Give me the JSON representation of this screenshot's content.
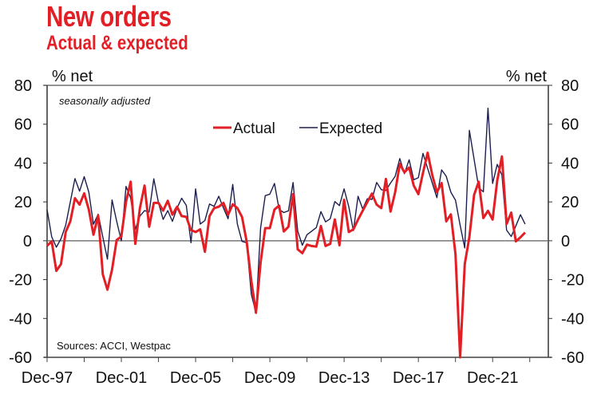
{
  "chart_data": {
    "type": "line",
    "title": "New orders",
    "subtitle": "Actual & expected",
    "ylabel_left": "% net",
    "ylabel_right": "% net",
    "note": "seasonally adjusted",
    "source": "Sources: ACCI, Westpac",
    "ylim": [
      -60,
      80
    ],
    "yticks": [
      80,
      60,
      40,
      20,
      0,
      -20,
      -40,
      -60
    ],
    "xlim": [
      "Dec-97",
      "Dec-24"
    ],
    "xtick_labels": [
      "Dec-97",
      "Dec-01",
      "Dec-05",
      "Dec-09",
      "Dec-13",
      "Dec-17",
      "Dec-21"
    ],
    "grid": false,
    "legend_position": "top-center",
    "frequency": "quarterly",
    "x": [
      "Dec-97",
      "Mar-98",
      "Jun-98",
      "Sep-98",
      "Dec-98",
      "Mar-99",
      "Jun-99",
      "Sep-99",
      "Dec-99",
      "Mar-00",
      "Jun-00",
      "Sep-00",
      "Dec-00",
      "Mar-01",
      "Jun-01",
      "Sep-01",
      "Dec-01",
      "Mar-02",
      "Jun-02",
      "Sep-02",
      "Dec-02",
      "Mar-03",
      "Jun-03",
      "Sep-03",
      "Dec-03",
      "Mar-04",
      "Jun-04",
      "Sep-04",
      "Dec-04",
      "Mar-05",
      "Jun-05",
      "Sep-05",
      "Dec-05",
      "Mar-06",
      "Jun-06",
      "Sep-06",
      "Dec-06",
      "Mar-07",
      "Jun-07",
      "Sep-07",
      "Dec-07",
      "Mar-08",
      "Jun-08",
      "Sep-08",
      "Dec-08",
      "Mar-09",
      "Jun-09",
      "Sep-09",
      "Dec-09",
      "Mar-10",
      "Jun-10",
      "Sep-10",
      "Dec-10",
      "Mar-11",
      "Jun-11",
      "Sep-11",
      "Dec-11",
      "Mar-12",
      "Jun-12",
      "Sep-12",
      "Dec-12",
      "Mar-13",
      "Jun-13",
      "Sep-13",
      "Dec-13",
      "Mar-14",
      "Jun-14",
      "Sep-14",
      "Dec-14",
      "Mar-15",
      "Jun-15",
      "Sep-15",
      "Dec-15",
      "Mar-16",
      "Jun-16",
      "Sep-16",
      "Dec-16",
      "Mar-17",
      "Jun-17",
      "Sep-17",
      "Dec-17",
      "Mar-18",
      "Jun-18",
      "Sep-18",
      "Dec-18",
      "Mar-19",
      "Jun-19",
      "Sep-19",
      "Dec-19",
      "Mar-20",
      "Jun-20",
      "Sep-20",
      "Dec-20",
      "Mar-21",
      "Jun-21",
      "Sep-21",
      "Dec-21",
      "Mar-22",
      "Jun-22",
      "Sep-22",
      "Dec-22",
      "Mar-23",
      "Jun-23",
      "Sep-23"
    ],
    "series": [
      {
        "name": "Actual",
        "color": "#e31f26",
        "values": [
          -2.6,
          -0.3,
          -15.5,
          -12,
          4.5,
          10,
          21.9,
          18.6,
          24.4,
          16,
          3.1,
          13,
          -17.3,
          -25.2,
          -14.8,
          0.4,
          2.2,
          20,
          30.4,
          -1.6,
          16.8,
          28.4,
          7.2,
          19.5,
          19.5,
          15.5,
          20.6,
          13.4,
          17.5,
          12.7,
          12.3,
          5.5,
          4.5,
          5.9,
          -5.7,
          12.7,
          16.8,
          17.5,
          19.5,
          13.4,
          18.8,
          16.8,
          12.3,
          -0.3,
          -20.7,
          -37.1,
          -11.2,
          6.5,
          6.5,
          16.1,
          18.1,
          4.8,
          7.2,
          24,
          -4.4,
          -6.4,
          -2,
          -2.7,
          -3,
          7.6,
          -2.7,
          -1.6,
          11,
          -2.3,
          21.1,
          4.5,
          5.9,
          10.9,
          15.4,
          19.9,
          24.3,
          18.6,
          16.8,
          31.8,
          15,
          25,
          39.6,
          35.2,
          37.7,
          28.4,
          24,
          35,
          45.3,
          33.8,
          25,
          29.7,
          10,
          13.6,
          -7,
          -60,
          -12,
          2,
          23.6,
          30.4,
          11.7,
          15.4,
          10.9,
          31,
          43.4,
          8.6,
          14.5,
          -0.3,
          1.8,
          4.2
        ]
      },
      {
        "name": "Expected",
        "color": "#1c1f4e",
        "values": [
          16,
          2,
          -3.3,
          1,
          8,
          20,
          32,
          25.5,
          33,
          25,
          8.5,
          13.7,
          2,
          -9.5,
          21,
          10,
          0,
          28,
          22,
          5.9,
          12.7,
          15.5,
          14.8,
          31.9,
          19.5,
          11,
          15.5,
          10,
          16.8,
          21.9,
          18.2,
          -1,
          26.7,
          8.6,
          10.4,
          18.9,
          17.7,
          22.9,
          16.8,
          11.3,
          29,
          8.6,
          -0.3,
          -1,
          -27.6,
          -37.1,
          6.5,
          23.2,
          24,
          29.5,
          16.1,
          14.5,
          15.4,
          30,
          5,
          -2.3,
          3.1,
          4.9,
          6.8,
          15,
          9.7,
          11.3,
          20.2,
          18.1,
          26.7,
          17.5,
          5.2,
          22.9,
          16.4,
          21.6,
          21.3,
          30,
          26.3,
          25.9,
          29.7,
          33.2,
          42.3,
          34.5,
          41.7,
          31.4,
          32.5,
          45,
          37.2,
          29.7,
          22.2,
          36.5,
          33.2,
          25,
          20.9,
          8,
          -3.7,
          56.8,
          42,
          27.3,
          25.2,
          68.2,
          29.5,
          39.3,
          33.8,
          5.5,
          2.2,
          7.6,
          13.4,
          8.6
        ]
      }
    ]
  }
}
